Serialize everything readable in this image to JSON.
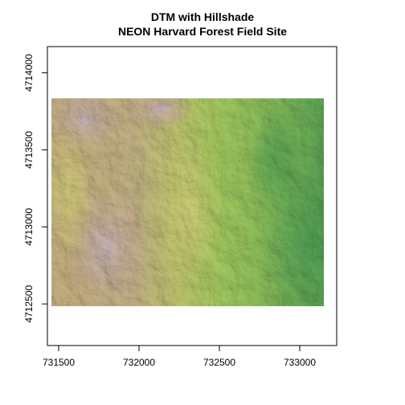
{
  "figure": {
    "title_line1": "DTM with Hillshade",
    "title_line2": "NEON Harvard Forest Field Site"
  },
  "chart_data": {
    "type": "raster-map",
    "title": "DTM with Hillshade NEON Harvard Forest Field Site",
    "xlabel": "",
    "ylabel": "",
    "xlim": [
      731430,
      733230
    ],
    "ylim": [
      4712230,
      4714170
    ],
    "x_ticks": [
      731500,
      732000,
      732500,
      733000
    ],
    "y_ticks": [
      4712500,
      4713000,
      4713500,
      4714000
    ],
    "x_tick_labels": [
      "731500",
      "732000",
      "732500",
      "733000"
    ],
    "y_tick_labels": [
      "4712500",
      "4713000",
      "4713500",
      "4714000"
    ],
    "raster_extent": {
      "xmin": 731455,
      "xmax": 733150,
      "ymin": 4712485,
      "ymax": 4713835
    },
    "colormap": "terrain",
    "colors": {
      "low": "#5aaa55",
      "mid_low": "#9ccc5a",
      "mid": "#c8cf6a",
      "mid_high": "#c9b27e",
      "high": "#c8b6b8",
      "axis": "#000000"
    },
    "grid": false,
    "legend": "none"
  }
}
